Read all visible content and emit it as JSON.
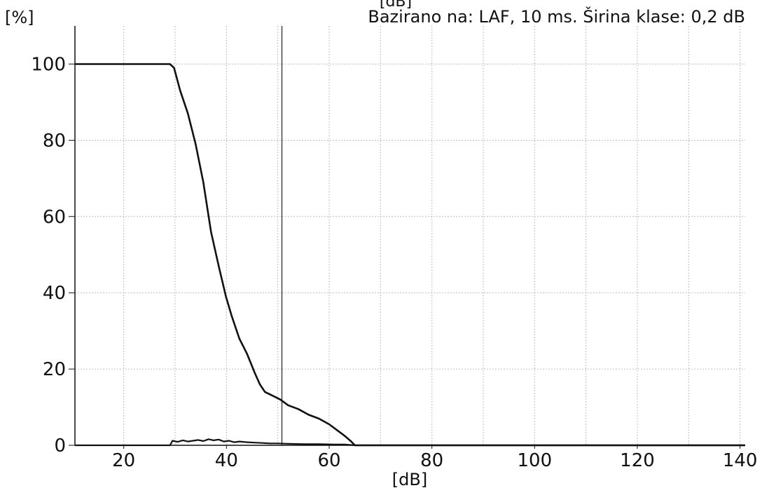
{
  "chart_data": {
    "type": "line",
    "top_label": "[dB]",
    "ylabel": "[%]",
    "title": "Bazirano na: LAF, 10 ms. Širina klase: 0,2 dB",
    "xlabel": "[dB]",
    "xlim": [
      10.5,
      141
    ],
    "ylim": [
      0,
      110
    ],
    "x_ticks": [
      20,
      40,
      60,
      80,
      100,
      120,
      140
    ],
    "y_ticks": [
      0,
      20,
      40,
      60,
      80,
      100
    ],
    "grid": true,
    "marker_line_x": 50.8,
    "series": [
      {
        "color": "#111111",
        "x": [
          10.5,
          29.0,
          29.8,
          31.0,
          32.5,
          34.0,
          35.5,
          37.0,
          38.5,
          39.9,
          41.0,
          42.5,
          44.0,
          45.5,
          46.5,
          47.5,
          49.0,
          50.5,
          52.0,
          54.0,
          56.0,
          58.0,
          60.0,
          61.5,
          63.0,
          64.3,
          65.0,
          141.0
        ],
        "values": [
          100,
          100,
          99,
          93,
          87,
          79,
          69,
          56,
          47,
          39,
          34,
          28,
          24,
          19,
          16,
          14,
          13,
          12,
          10.5,
          9.5,
          8,
          7,
          5.5,
          4,
          2.5,
          1,
          0,
          0
        ]
      },
      {
        "color": "#111111",
        "x": [
          10.5,
          29.0,
          29.5,
          30.5,
          31.5,
          32.5,
          33.5,
          34.5,
          35.5,
          36.5,
          37.5,
          38.5,
          39.5,
          40.5,
          41.5,
          42.5,
          44.0,
          45.5,
          47.0,
          48.5,
          50.0,
          52.0,
          55.0,
          58.0,
          61.0,
          63.0,
          65.0,
          141.0
        ],
        "values": [
          0,
          0,
          1.2,
          0.9,
          1.3,
          1.0,
          1.2,
          1.4,
          1.1,
          1.6,
          1.3,
          1.5,
          1.0,
          1.2,
          0.8,
          1.0,
          0.8,
          0.7,
          0.6,
          0.5,
          0.5,
          0.4,
          0.3,
          0.3,
          0.2,
          0.2,
          0,
          0
        ]
      }
    ]
  }
}
